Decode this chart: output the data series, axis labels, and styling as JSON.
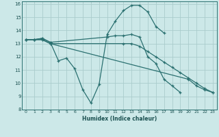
{
  "xlabel": "Humidex (Indice chaleur)",
  "bg_color": "#cce8e8",
  "grid_color": "#aacccc",
  "line_color": "#2a7070",
  "xlim": [
    -0.5,
    23.5
  ],
  "ylim": [
    8,
    16.2
  ],
  "xticks": [
    0,
    1,
    2,
    3,
    4,
    5,
    6,
    7,
    8,
    9,
    10,
    11,
    12,
    13,
    14,
    15,
    16,
    17,
    18,
    19,
    20,
    21,
    22,
    23
  ],
  "yticks": [
    8,
    9,
    10,
    11,
    12,
    13,
    14,
    15,
    16
  ],
  "series": [
    {
      "x": [
        0,
        1,
        2,
        3,
        4,
        5,
        6,
        7,
        8,
        9,
        10,
        11,
        12,
        13,
        14,
        15,
        16,
        17
      ],
      "y": [
        13.3,
        13.3,
        13.4,
        13.1,
        11.7,
        11.9,
        11.1,
        9.5,
        8.5,
        9.9,
        13.7,
        14.7,
        15.5,
        15.9,
        15.9,
        15.4,
        14.3,
        13.8
      ]
    },
    {
      "x": [
        0,
        1,
        2,
        3,
        10,
        11,
        12,
        13,
        14,
        15,
        16,
        17,
        18,
        19
      ],
      "y": [
        13.3,
        13.3,
        13.4,
        13.1,
        13.5,
        13.6,
        13.6,
        13.7,
        13.5,
        12.0,
        11.5,
        10.3,
        9.8,
        9.3
      ]
    },
    {
      "x": [
        0,
        1,
        2,
        3,
        12,
        13,
        14,
        15,
        16,
        17,
        18,
        19,
        20,
        21,
        22,
        23
      ],
      "y": [
        13.3,
        13.3,
        13.3,
        13.0,
        13.0,
        13.0,
        12.8,
        12.4,
        12.0,
        11.6,
        11.2,
        10.8,
        10.4,
        10.0,
        9.6,
        9.3
      ]
    },
    {
      "x": [
        0,
        1,
        2,
        3,
        20,
        21,
        22,
        23
      ],
      "y": [
        13.3,
        13.3,
        13.3,
        13.0,
        10.3,
        9.8,
        9.5,
        9.3
      ]
    }
  ]
}
